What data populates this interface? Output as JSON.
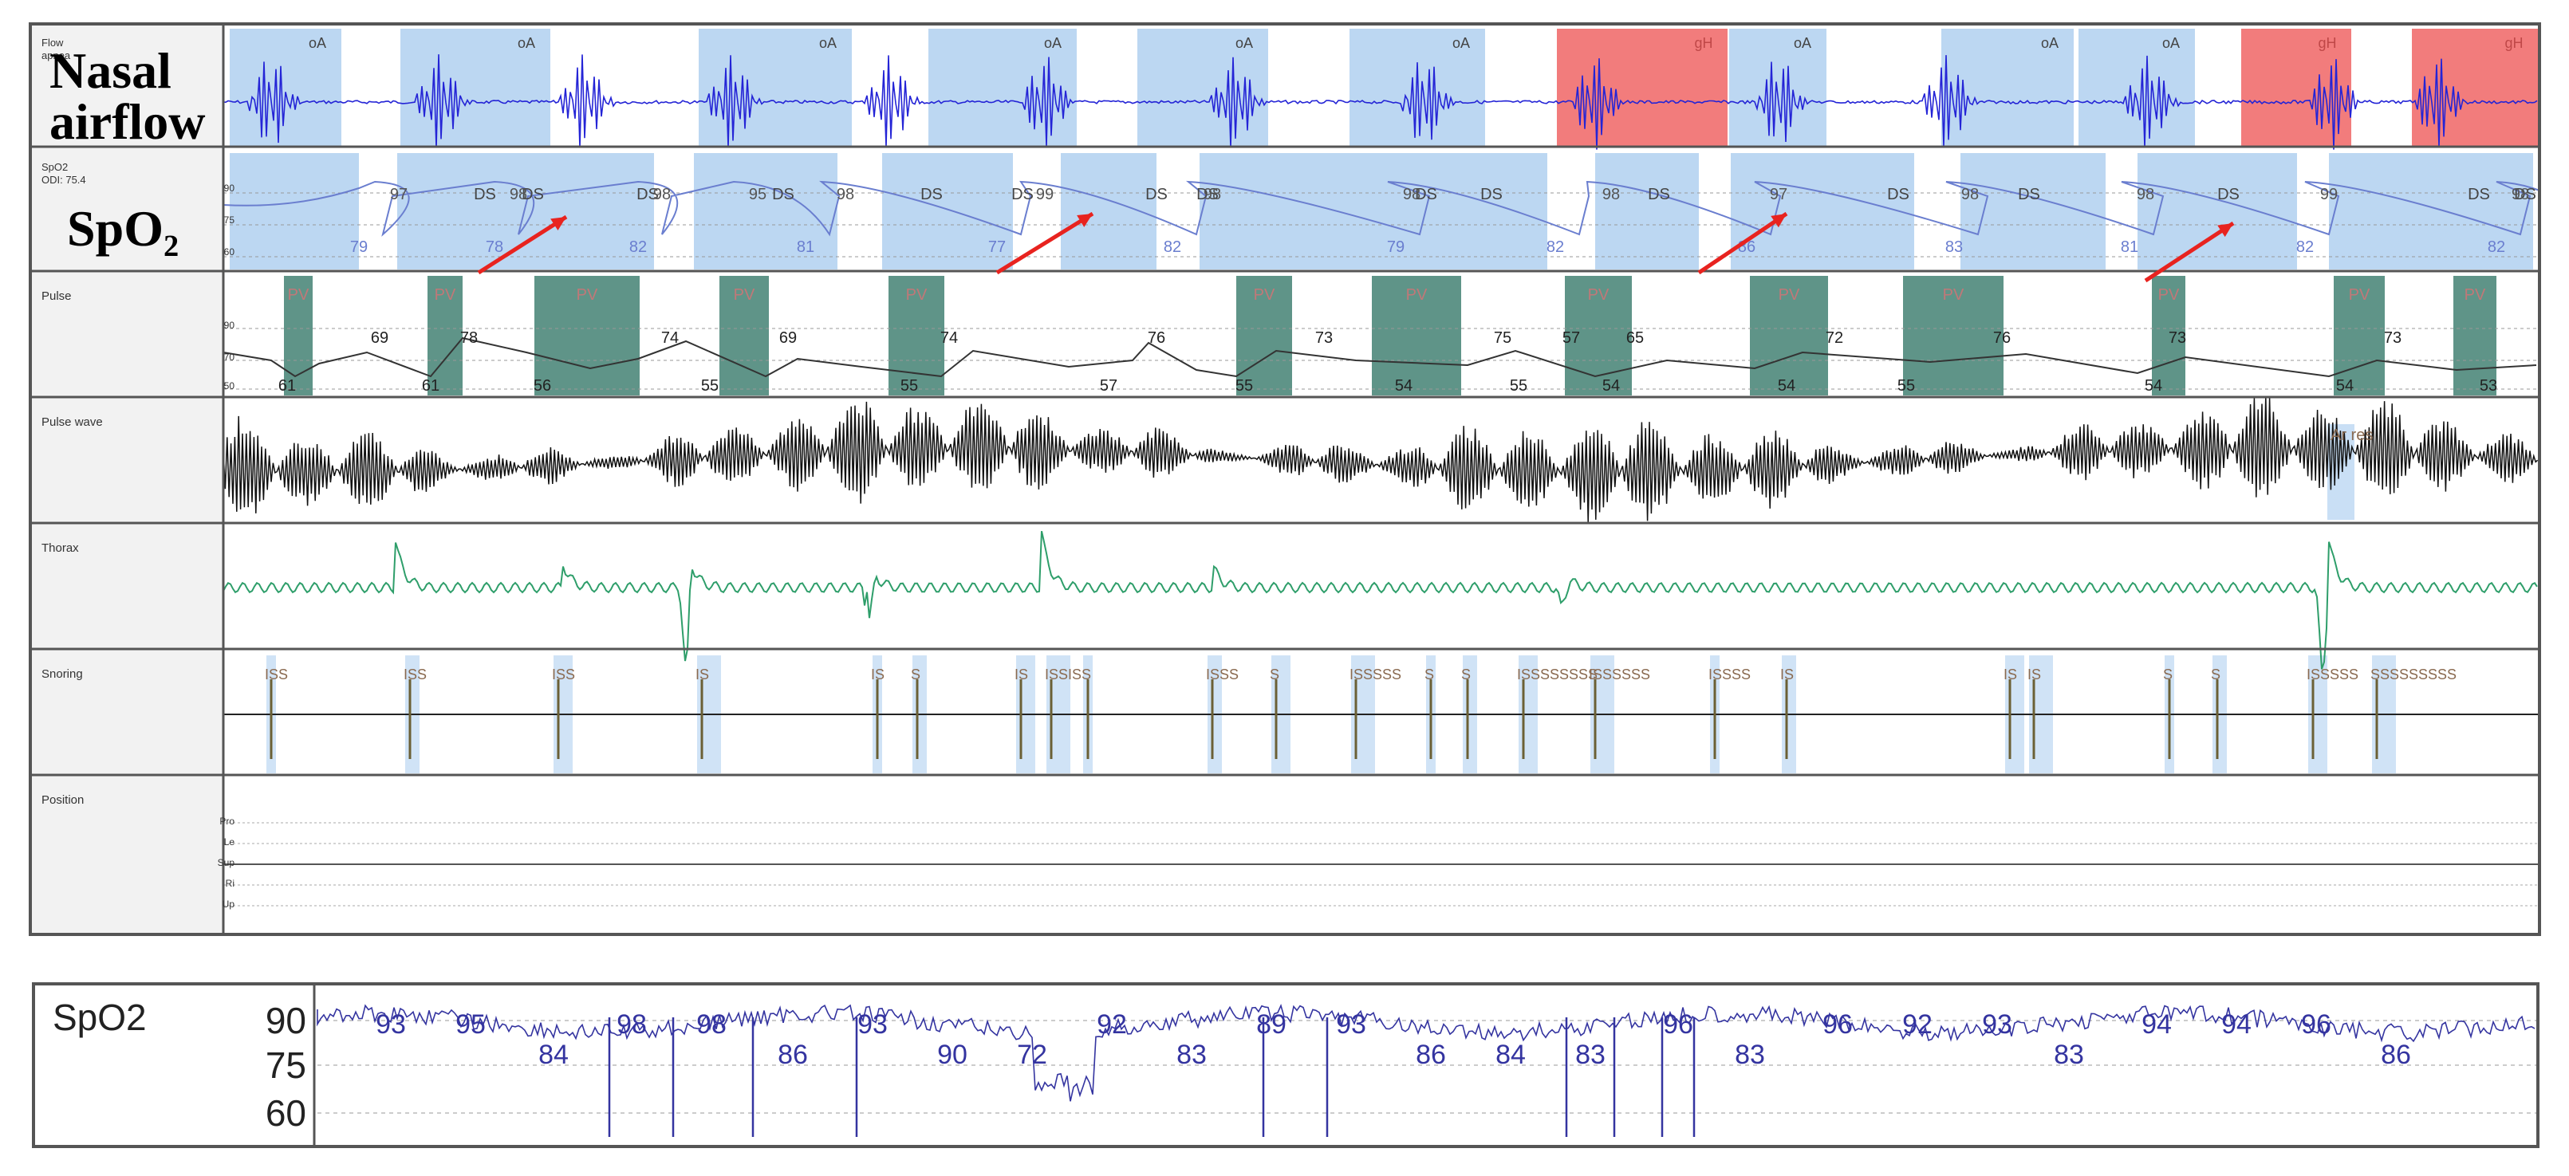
{
  "channels": [
    {
      "name": "Flow",
      "sub": "apnea",
      "overlay": [
        "Nasal",
        "airflow"
      ]
    },
    {
      "name": "SpO2",
      "sub": "ODI: 75.4",
      "overlay": [
        "SpO₂"
      ],
      "scale": [
        "90",
        "75",
        "60"
      ]
    },
    {
      "name": "Pulse",
      "sub": "",
      "scale": [
        "90",
        "70",
        "50"
      ]
    },
    {
      "name": "Pulse wave",
      "sub": ""
    },
    {
      "name": "Thorax",
      "sub": ""
    },
    {
      "name": "Snoring",
      "sub": ""
    },
    {
      "name": "Position",
      "sub": "",
      "levels": [
        "Pro",
        "Le",
        "Sup",
        "Ri",
        "Up"
      ]
    }
  ],
  "flow_events": [
    {
      "label": "oA",
      "type": "obstructive"
    },
    {
      "label": "oA",
      "type": "obstructive"
    },
    {
      "label": "oA",
      "type": "obstructive"
    },
    {
      "label": "oA",
      "type": "obstructive"
    },
    {
      "label": "oA",
      "type": "obstructive"
    },
    {
      "label": "oA",
      "type": "obstructive"
    },
    {
      "label": "oA",
      "type": "obstructive"
    },
    {
      "label": "oA",
      "type": "obstructive"
    },
    {
      "label": "oA",
      "type": "obstructive"
    },
    {
      "label": "gH",
      "type": "hypopnea"
    },
    {
      "label": "oA",
      "type": "obstructive"
    },
    {
      "label": "oA",
      "type": "obstructive"
    },
    {
      "label": "gH",
      "type": "hypopnea"
    },
    {
      "label": "gH",
      "type": "hypopnea"
    }
  ],
  "spo2_event_label": "DS",
  "spo2_peaks": [
    "97",
    "98",
    "98",
    "95",
    "98",
    "99",
    "98",
    "98",
    "98",
    "97",
    "98",
    "98",
    "99",
    "98"
  ],
  "spo2_nadirs": [
    "79",
    "78",
    "82",
    "81",
    "77",
    "82",
    "79",
    "82",
    "86",
    "83",
    "81",
    "82",
    "82"
  ],
  "pulse_event_label": "PV",
  "pulse_labels": [
    "61",
    "69",
    "61",
    "78",
    "56",
    "74",
    "55",
    "69",
    "55",
    "74",
    "57",
    "76",
    "55",
    "73",
    "54",
    "75",
    "55",
    "57",
    "54",
    "65",
    "54",
    "72",
    "55",
    "76",
    "54",
    "73",
    "54",
    "73",
    "53"
  ],
  "pulsewave_event": "Ar res",
  "snoring_labels": [
    "ISS",
    "ISS",
    "ISS",
    "IS",
    "IS",
    "S",
    "IS",
    "ISSIS",
    "S",
    "ISSS",
    "S",
    "ISSSSS",
    "S",
    "S",
    "ISSSSSSSS",
    "ISSSSSS",
    "ISSSS",
    "IS",
    "IS",
    "IS",
    "S",
    "S",
    "ISSSSS",
    "SSSSSSSSS"
  ],
  "bottom": {
    "title": "SpO2",
    "scale": [
      "90",
      "75",
      "60"
    ],
    "peaks": [
      "93",
      "95",
      "98",
      "98",
      "93",
      "92",
      "89",
      "93",
      "96",
      "96",
      "92",
      "93",
      "94",
      "94",
      "96"
    ],
    "nadirs": [
      "84",
      "86",
      "90",
      "72",
      "83",
      "86",
      "84",
      "83",
      "83",
      "83",
      "86"
    ]
  },
  "colors": {
    "flow": "#2424d6",
    "event_blue": "#bcd7f2",
    "event_red": "#f27c7c",
    "pv": "#5f9488",
    "thorax": "#2e9e6a",
    "arrow": "#e8231f",
    "spo2": "#6a7ecf",
    "bottom_spo2": "#3434a0"
  }
}
